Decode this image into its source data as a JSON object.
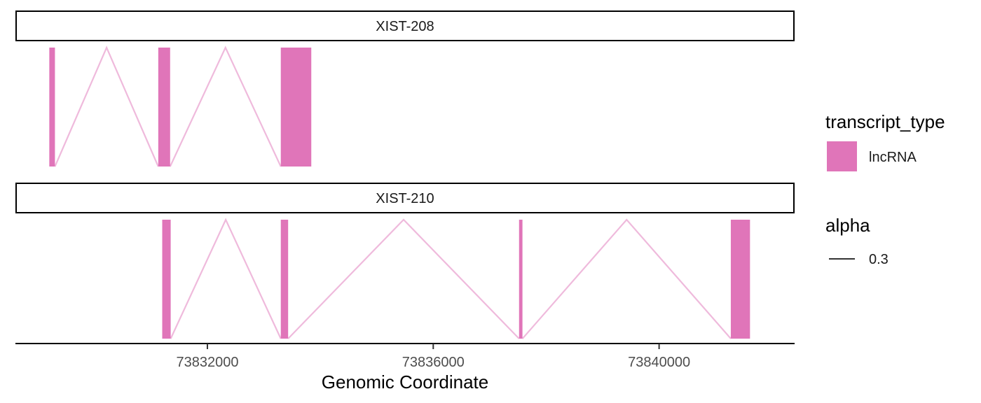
{
  "chart_data": {
    "type": "gene-track",
    "xlabel": "Genomic Coordinate",
    "xlim": [
      73828600,
      73842400
    ],
    "x_ticks": [
      73832000,
      73836000,
      73840000
    ],
    "x_tick_labels": [
      "73832000",
      "73836000",
      "73840000"
    ],
    "colors": {
      "exon": "#E075B9",
      "intron": "#E075B9",
      "intron_alpha": 0.5
    },
    "transcripts": [
      {
        "name": "XIST-208",
        "transcript_type": "lncRNA",
        "exons": [
          [
            73829200,
            73829300
          ],
          [
            73831130,
            73831340
          ],
          [
            73833300,
            73833840
          ]
        ]
      },
      {
        "name": "XIST-210",
        "transcript_type": "lncRNA",
        "exons": [
          [
            73831200,
            73831350
          ],
          [
            73833300,
            73833430
          ],
          [
            73837520,
            73837580
          ],
          [
            73841270,
            73841610
          ]
        ]
      }
    ],
    "legend": {
      "position": "right",
      "fill_title": "transcript_type",
      "fill_items": [
        {
          "label": "lncRNA",
          "color": "#E075B9"
        }
      ],
      "alpha_title": "alpha",
      "alpha_items": [
        {
          "label": "0.3"
        }
      ]
    }
  }
}
